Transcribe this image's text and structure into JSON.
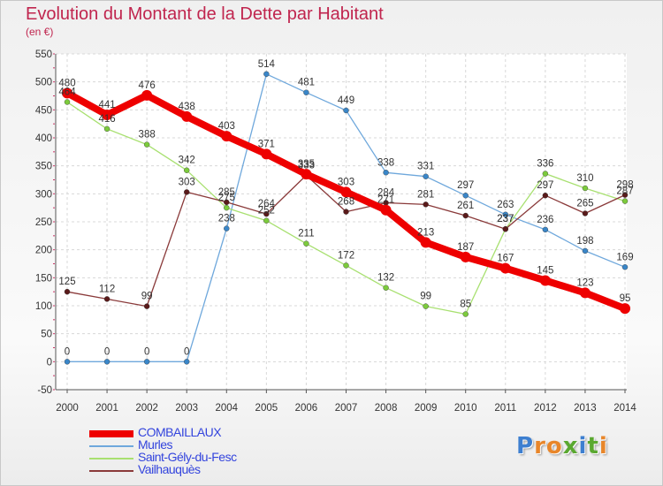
{
  "title": "Evolution du Montant de la Dette par Habitant",
  "subtitle": "(en €)",
  "logo": "Proxiti",
  "chart_data": {
    "type": "line",
    "title": "Evolution du Montant de la Dette par Habitant",
    "ylabel": "(en €)",
    "x": [
      2000,
      2001,
      2002,
      2003,
      2004,
      2005,
      2006,
      2007,
      2008,
      2009,
      2010,
      2011,
      2012,
      2013,
      2014
    ],
    "xticks": [
      "2000",
      "2001",
      "2002",
      "2003",
      "2004",
      "2005",
      "2006",
      "2007",
      "2008",
      "2009",
      "2010",
      "2011",
      "2012",
      "2013",
      "2014"
    ],
    "ylim": [
      -50,
      550
    ],
    "yticks": [
      "-50",
      "0",
      "50",
      "100",
      "150",
      "200",
      "250",
      "300",
      "350",
      "400",
      "450",
      "500",
      "550"
    ],
    "grid": true,
    "legend": "bottom-left",
    "series": [
      {
        "name": "Murles",
        "color": "#6fa8dc",
        "marker": "#3a86c8",
        "values": [
          0,
          0,
          0,
          0,
          238,
          514,
          481,
          449,
          338,
          331,
          297,
          263,
          236,
          198,
          169
        ]
      },
      {
        "name": "Saint-Gély-du-Fesc",
        "color": "#a8e070",
        "marker": "#7ccb3c",
        "values": [
          464,
          416,
          388,
          342,
          275,
          252,
          211,
          172,
          132,
          99,
          85,
          237,
          336,
          310,
          287
        ]
      },
      {
        "name": "Vailhauquès",
        "color": "#8a3a3a",
        "marker": "#5a1a1a",
        "values": [
          125,
          112,
          99,
          303,
          285,
          264,
          333,
          268,
          284,
          281,
          261,
          237,
          297,
          265,
          298
        ]
      },
      {
        "name": "COMBAILLAUX",
        "color": "#ee0000",
        "marker": "#ee0000",
        "values": [
          480,
          441,
          476,
          438,
          403,
          371,
          335,
          303,
          271,
          213,
          187,
          167,
          145,
          123,
          95
        ]
      }
    ]
  }
}
